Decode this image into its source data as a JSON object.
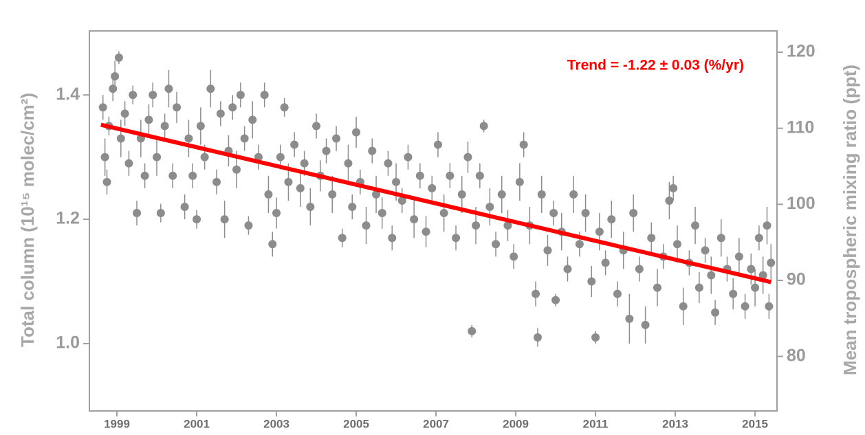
{
  "chart_data": {
    "type": "scatter",
    "y_label": "Total column (10¹⁵ molec/cm²)",
    "y2_label": "Mean tropospheric mixing ratio (ppt)",
    "xlim": [
      1998.31,
      2015.55
    ],
    "xticks": [
      1999,
      2001,
      2003,
      2005,
      2007,
      2009,
      2011,
      2013,
      2015
    ],
    "ylim": [
      0.895,
      1.503
    ],
    "yticks": [
      {
        "value": 1.0,
        "label": "1.0"
      },
      1.2,
      1.4
    ],
    "y2lim": [
      73.1,
      122.8
    ],
    "y2ticks": [
      80,
      90,
      100,
      110,
      120
    ],
    "x": [
      1998.65,
      1998.7,
      1998.75,
      1998.8,
      1998.9,
      1998.95,
      1999.05,
      1999.1,
      1999.2,
      1999.3,
      1999.4,
      1999.5,
      1999.6,
      1999.7,
      1999.8,
      1999.9,
      2000.0,
      2000.1,
      2000.2,
      2000.3,
      2000.4,
      2000.5,
      2000.7,
      2000.8,
      2000.9,
      2001.0,
      2001.1,
      2001.2,
      2001.35,
      2001.5,
      2001.6,
      2001.7,
      2001.8,
      2001.9,
      2002.0,
      2002.1,
      2002.2,
      2002.3,
      2002.4,
      2002.55,
      2002.7,
      2002.8,
      2002.9,
      2003.0,
      2003.1,
      2003.2,
      2003.3,
      2003.45,
      2003.6,
      2003.7,
      2003.85,
      2004.0,
      2004.1,
      2004.25,
      2004.4,
      2004.5,
      2004.65,
      2004.8,
      2004.9,
      2005.0,
      2005.1,
      2005.25,
      2005.4,
      2005.5,
      2005.65,
      2005.8,
      2005.9,
      2006.0,
      2006.15,
      2006.3,
      2006.45,
      2006.6,
      2006.75,
      2006.9,
      2007.05,
      2007.2,
      2007.35,
      2007.5,
      2007.65,
      2007.8,
      2007.9,
      2008.0,
      2008.1,
      2008.2,
      2008.35,
      2008.5,
      2008.65,
      2008.8,
      2008.95,
      2009.1,
      2009.2,
      2009.35,
      2009.5,
      2009.55,
      2009.65,
      2009.8,
      2009.95,
      2010.0,
      2010.15,
      2010.3,
      2010.45,
      2010.6,
      2010.75,
      2010.9,
      2011.0,
      2011.1,
      2011.25,
      2011.4,
      2011.55,
      2011.7,
      2011.85,
      2011.95,
      2012.1,
      2012.25,
      2012.4,
      2012.55,
      2012.7,
      2012.85,
      2012.95,
      2013.05,
      2013.2,
      2013.35,
      2013.5,
      2013.6,
      2013.75,
      2013.9,
      2014.0,
      2014.15,
      2014.3,
      2014.45,
      2014.6,
      2014.75,
      2014.9,
      2015.0,
      2015.1,
      2015.2,
      2015.3,
      2015.35,
      2015.4
    ],
    "series": [
      {
        "color": "#8c8c8c",
        "values": [
          1.38,
          1.3,
          1.26,
          1.35,
          1.41,
          1.43,
          1.46,
          1.33,
          1.37,
          1.29,
          1.4,
          1.21,
          1.33,
          1.27,
          1.36,
          1.4,
          1.3,
          1.21,
          1.35,
          1.41,
          1.27,
          1.38,
          1.22,
          1.33,
          1.27,
          1.2,
          1.35,
          1.3,
          1.41,
          1.26,
          1.37,
          1.2,
          1.31,
          1.38,
          1.28,
          1.4,
          1.33,
          1.19,
          1.36,
          1.3,
          1.4,
          1.24,
          1.16,
          1.21,
          1.3,
          1.38,
          1.26,
          1.32,
          1.25,
          1.29,
          1.22,
          1.35,
          1.27,
          1.31,
          1.24,
          1.33,
          1.17,
          1.29,
          1.22,
          1.34,
          1.26,
          1.19,
          1.31,
          1.24,
          1.21,
          1.29,
          1.17,
          1.26,
          1.23,
          1.3,
          1.2,
          1.27,
          1.18,
          1.25,
          1.32,
          1.21,
          1.27,
          1.17,
          1.24,
          1.3,
          1.02,
          1.19,
          1.27,
          1.35,
          1.22,
          1.16,
          1.24,
          1.19,
          1.14,
          1.26,
          1.32,
          1.19,
          1.08,
          1.01,
          1.24,
          1.15,
          1.21,
          1.07,
          1.18,
          1.12,
          1.24,
          1.16,
          1.21,
          1.1,
          1.01,
          1.18,
          1.13,
          1.2,
          1.08,
          1.15,
          1.04,
          1.21,
          1.12,
          1.03,
          1.17,
          1.09,
          1.14,
          1.23,
          1.25,
          1.16,
          1.06,
          1.13,
          1.19,
          1.09,
          1.15,
          1.11,
          1.05,
          1.17,
          1.12,
          1.08,
          1.14,
          1.06,
          1.12,
          1.09,
          1.17,
          1.11,
          1.19,
          1.06,
          1.13
        ],
        "errors": [
          0.02,
          0.03,
          0.02,
          0.015,
          0.02,
          0.025,
          0.01,
          0.03,
          0.02,
          0.02,
          0.015,
          0.02,
          0.03,
          0.02,
          0.025,
          0.02,
          0.03,
          0.015,
          0.02,
          0.03,
          0.02,
          0.025,
          0.02,
          0.03,
          0.02,
          0.015,
          0.03,
          0.02,
          0.03,
          0.02,
          0.02,
          0.03,
          0.025,
          0.02,
          0.03,
          0.02,
          0.02,
          0.015,
          0.03,
          0.02,
          0.02,
          0.03,
          0.02,
          0.025,
          0.02,
          0.015,
          0.03,
          0.02,
          0.03,
          0.02,
          0.03,
          0.02,
          0.025,
          0.02,
          0.03,
          0.02,
          0.015,
          0.03,
          0.02,
          0.025,
          0.02,
          0.03,
          0.02,
          0.03,
          0.025,
          0.02,
          0.02,
          0.03,
          0.02,
          0.02,
          0.03,
          0.02,
          0.025,
          0.02,
          0.02,
          0.03,
          0.02,
          0.02,
          0.03,
          0.025,
          0.01,
          0.03,
          0.02,
          0.01,
          0.03,
          0.02,
          0.03,
          0.025,
          0.02,
          0.03,
          0.02,
          0.03,
          0.02,
          0.015,
          0.03,
          0.025,
          0.02,
          0.01,
          0.03,
          0.02,
          0.03,
          0.02,
          0.03,
          0.025,
          0.01,
          0.03,
          0.02,
          0.03,
          0.02,
          0.03,
          0.04,
          0.03,
          0.02,
          0.03,
          0.025,
          0.03,
          0.02,
          0.03,
          0.02,
          0.03,
          0.03,
          0.02,
          0.03,
          0.025,
          0.02,
          0.03,
          0.02,
          0.03,
          0.02,
          0.025,
          0.03,
          0.02,
          0.025,
          0.03,
          0.02,
          0.03,
          0.03,
          0.02,
          0.03
        ]
      }
    ],
    "trend": {
      "label": "Trend = -1.22 ± 0.03 (%/yr)",
      "color": "#ff0000",
      "x": [
        1998.6,
        2015.4
      ],
      "values": [
        1.352,
        1.099
      ]
    }
  }
}
